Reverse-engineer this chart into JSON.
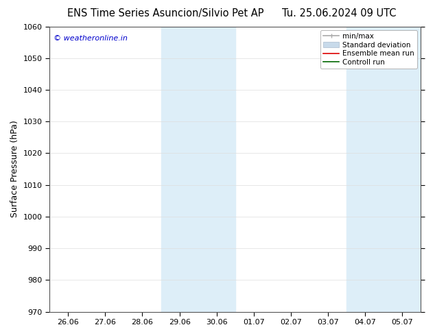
{
  "title_left": "ENS Time Series Asuncion/Silvio Pet AP",
  "title_right": "Tu. 25.06.2024 09 UTC",
  "ylabel": "Surface Pressure (hPa)",
  "ylim": [
    970,
    1060
  ],
  "yticks": [
    970,
    980,
    990,
    1000,
    1010,
    1020,
    1030,
    1040,
    1050,
    1060
  ],
  "xtick_labels": [
    "26.06",
    "27.06",
    "28.06",
    "29.06",
    "30.06",
    "01.07",
    "02.07",
    "03.07",
    "04.07",
    "05.07"
  ],
  "shaded_regions": [
    {
      "xstart": 3,
      "xend": 5
    },
    {
      "xstart": 8,
      "xend": 10
    }
  ],
  "shaded_color": "#ddeef8",
  "watermark": "© weatheronline.in",
  "watermark_color": "#0000cc",
  "legend_items": [
    {
      "label": "min/max",
      "color": "#aaaaaa",
      "style": "range"
    },
    {
      "label": "Standard deviation",
      "color": "#c8daea",
      "style": "band"
    },
    {
      "label": "Ensemble mean run",
      "color": "#dd0000",
      "style": "line"
    },
    {
      "label": "Controll run",
      "color": "#006600",
      "style": "line"
    }
  ],
  "background_color": "#ffffff",
  "spine_color": "#555555",
  "grid_color": "#dddddd",
  "title_fontsize": 10.5,
  "tick_fontsize": 8,
  "ylabel_fontsize": 9,
  "legend_fontsize": 7.5
}
